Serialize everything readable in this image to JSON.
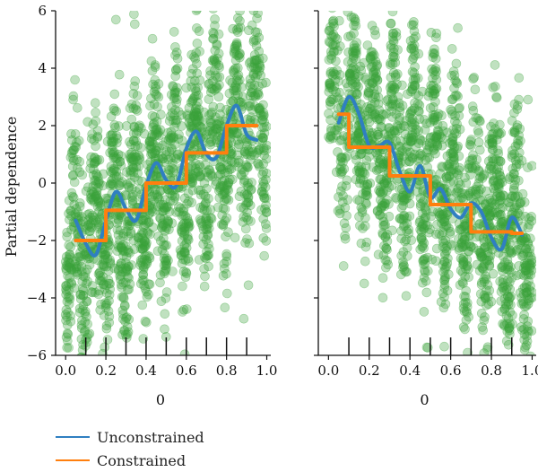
{
  "chart_data": [
    {
      "type": "scatter",
      "ylabel": "Partial dependence",
      "xlabel": "0",
      "xlim": [
        -0.05,
        1.02
      ],
      "ylim": [
        -6,
        6
      ],
      "xticks": [
        "0.0",
        "0.2",
        "0.4",
        "0.6",
        "0.8",
        "1.0"
      ],
      "yticks": [
        "6",
        "4",
        "2",
        "0",
        "−2",
        "−4",
        "−6"
      ],
      "rug_x": [
        0.1,
        0.2,
        0.3,
        0.4,
        0.5,
        0.6,
        0.7,
        0.8,
        0.9
      ],
      "scatter_trend": {
        "slope": 5.0,
        "intercept": -2.5,
        "wiggle_amp": 2.0,
        "spread": 1.6
      },
      "series": [
        {
          "name": "Unconstrained",
          "x": [
            0.05,
            0.1,
            0.15,
            0.2,
            0.25,
            0.3,
            0.35,
            0.4,
            0.45,
            0.5,
            0.55,
            0.6,
            0.65,
            0.7,
            0.75,
            0.8,
            0.85,
            0.9,
            0.95
          ],
          "y": [
            -1.3,
            -2.1,
            -2.5,
            -1.3,
            -0.3,
            -0.9,
            -1.3,
            -0.1,
            0.7,
            0.1,
            -0.1,
            1.2,
            1.8,
            1.0,
            0.9,
            2.0,
            2.7,
            1.7,
            1.5
          ]
        },
        {
          "name": "Constrained",
          "x": [
            0.05,
            0.2,
            0.2,
            0.4,
            0.4,
            0.6,
            0.6,
            0.8,
            0.8,
            0.95
          ],
          "y": [
            -2.0,
            -2.0,
            -0.95,
            -0.95,
            0.0,
            0.0,
            1.05,
            1.05,
            2.0,
            2.0
          ]
        }
      ]
    },
    {
      "type": "scatter",
      "ylabel": "",
      "xlabel": "0",
      "xlim": [
        -0.05,
        1.02
      ],
      "ylim": [
        -6,
        6
      ],
      "xticks": [
        "0.0",
        "0.2",
        "0.4",
        "0.6",
        "0.8",
        "1.0"
      ],
      "rug_x": [
        0.1,
        0.2,
        0.3,
        0.4,
        0.5,
        0.6,
        0.7,
        0.8,
        0.9
      ],
      "scatter_trend": {
        "slope": -5.0,
        "intercept": 2.8,
        "wiggle_amp": 2.0,
        "spread": 1.6
      },
      "series": [
        {
          "name": "Unconstrained",
          "x": [
            0.05,
            0.1,
            0.15,
            0.2,
            0.25,
            0.3,
            0.35,
            0.4,
            0.45,
            0.5,
            0.55,
            0.6,
            0.65,
            0.7,
            0.75,
            0.8,
            0.85,
            0.9,
            0.95
          ],
          "y": [
            2.1,
            3.0,
            2.4,
            1.3,
            1.3,
            1.4,
            0.4,
            -0.3,
            0.6,
            -0.5,
            -0.2,
            -0.9,
            -1.2,
            -0.7,
            -1.0,
            -1.9,
            -2.3,
            -1.2,
            -1.8
          ]
        },
        {
          "name": "Constrained",
          "x": [
            0.05,
            0.1,
            0.1,
            0.3,
            0.3,
            0.5,
            0.5,
            0.7,
            0.7,
            0.9,
            0.9,
            0.95
          ],
          "y": [
            2.4,
            2.4,
            1.25,
            1.25,
            0.25,
            0.25,
            -0.75,
            -0.75,
            -1.7,
            -1.7,
            -1.75,
            -1.75
          ]
        }
      ]
    }
  ],
  "colors": {
    "scatter": "#3aa33a",
    "unconstrained": "#2f7fc1",
    "constrained": "#ff7f0e"
  },
  "legend": [
    {
      "label": "Unconstrained",
      "color": "#2f7fc1"
    },
    {
      "label": "Constrained",
      "color": "#ff7f0e"
    }
  ]
}
